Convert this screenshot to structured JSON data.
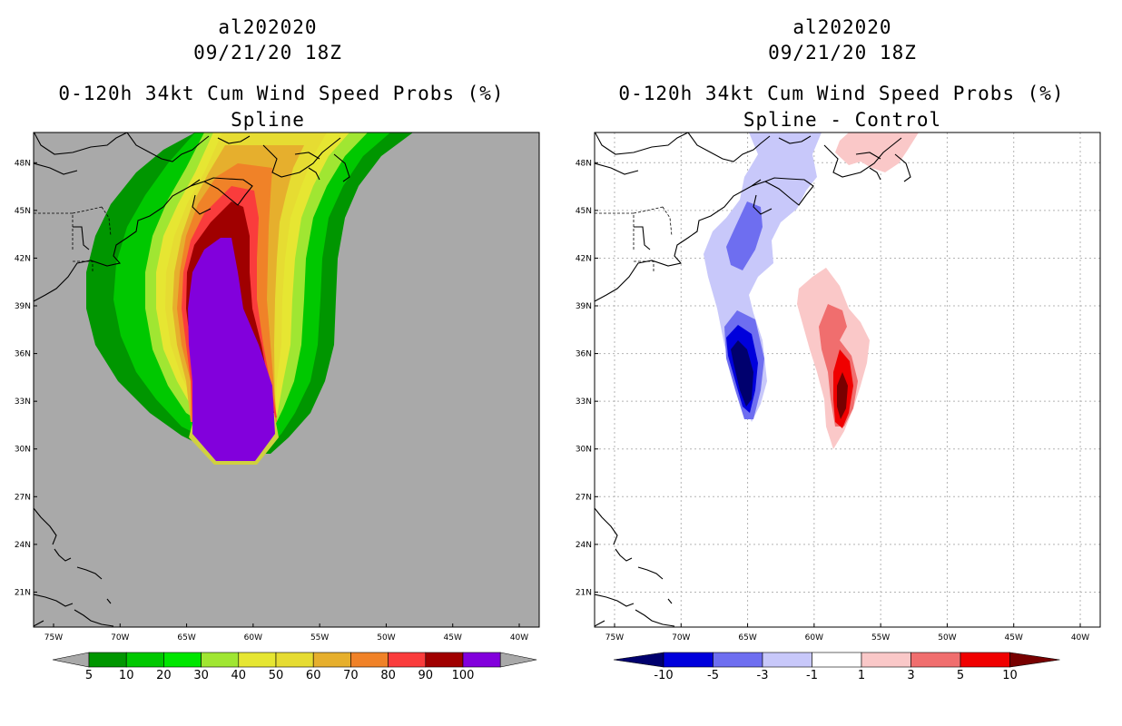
{
  "chart_data": [
    {
      "type": "filled-contour-map",
      "storm_id": "al202020",
      "datetime": "09/21/20 18Z",
      "title": "0-120h 34kt Cum Wind Speed Probs (%)",
      "subtitle": "Spline",
      "background_color": "#a9a9a9",
      "x_ticks": [
        "75W",
        "70W",
        "65W",
        "60W",
        "55W",
        "50W",
        "45W",
        "40W"
      ],
      "y_ticks": [
        "48N",
        "45N",
        "42N",
        "39N",
        "36N",
        "33N",
        "30N",
        "27N",
        "24N",
        "21N"
      ],
      "lon_range": [
        -76.5,
        -38.5
      ],
      "lat_range": [
        18.8,
        49.9
      ],
      "colorbar": {
        "labels": [
          "5",
          "10",
          "20",
          "30",
          "40",
          "50",
          "60",
          "70",
          "80",
          "90",
          "100"
        ],
        "colors": [
          "#009600",
          "#00c800",
          "#00e600",
          "#a0e632",
          "#e6e632",
          "#e6dc32",
          "#e6af2d",
          "#f08228",
          "#fa3c3c",
          "#a00000",
          "#8200dc"
        ]
      }
    },
    {
      "type": "filled-contour-map",
      "storm_id": "al202020",
      "datetime": "09/21/20 18Z",
      "title": "0-120h 34kt Cum Wind Speed Probs (%)",
      "subtitle": "Spline - Control",
      "background_color": "#ffffff",
      "grid": true,
      "x_ticks": [
        "75W",
        "70W",
        "65W",
        "60W",
        "55W",
        "50W",
        "45W",
        "40W"
      ],
      "y_ticks": [
        "48N",
        "45N",
        "42N",
        "39N",
        "36N",
        "33N",
        "30N",
        "27N",
        "24N",
        "21N"
      ],
      "lon_range": [
        -76.5,
        -38.5
      ],
      "lat_range": [
        18.8,
        49.9
      ],
      "colorbar": {
        "labels": [
          "-10",
          "-5",
          "-3",
          "-1",
          "1",
          "3",
          "5",
          "10"
        ],
        "colors": [
          "#00006e",
          "#0000dc",
          "#6e6ef0",
          "#c8c8fa",
          "#ffffff",
          "#fac8c8",
          "#f06e6e",
          "#f00000",
          "#780000"
        ]
      }
    }
  ]
}
